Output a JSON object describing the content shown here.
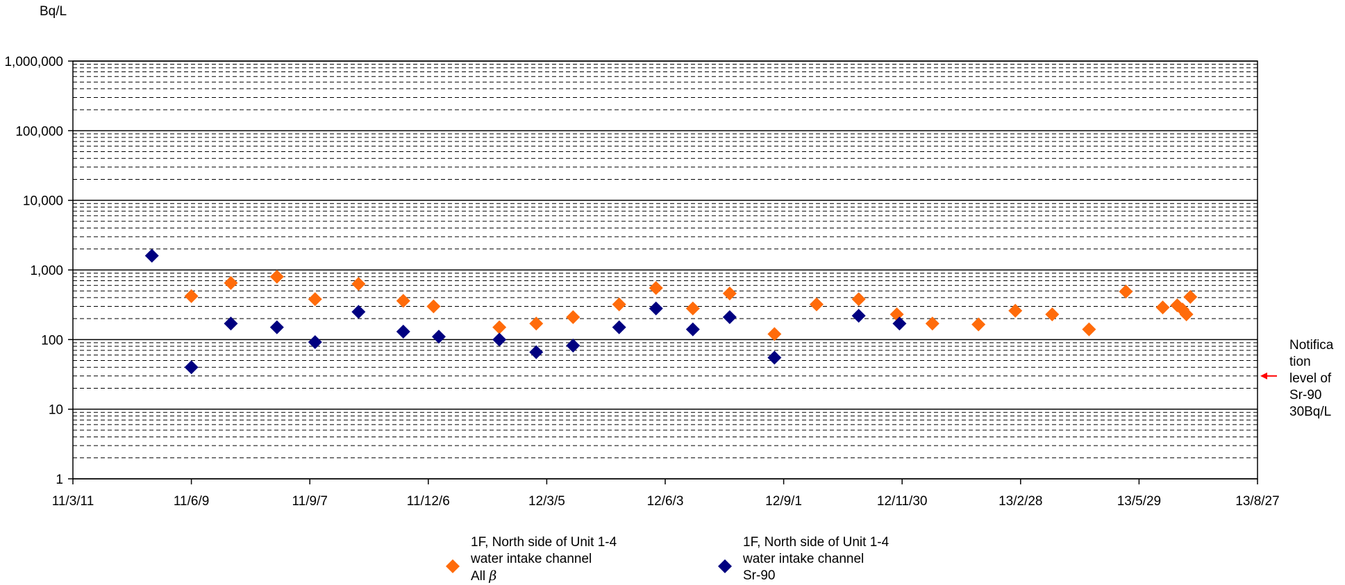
{
  "chart_data": {
    "type": "scatter",
    "title": "",
    "xlabel": "",
    "ylabel": "Bq/L",
    "yscale": "log",
    "ylim": [
      1,
      1000000
    ],
    "xlim": [
      "2011-03-11",
      "2013-08-27"
    ],
    "grid": true,
    "legend_position": "bottom",
    "y_ticks": [
      {
        "value": 1,
        "label": "1"
      },
      {
        "value": 10,
        "label": "10"
      },
      {
        "value": 100,
        "label": "100"
      },
      {
        "value": 1000,
        "label": "1,000"
      },
      {
        "value": 10000,
        "label": "10,000"
      },
      {
        "value": 100000,
        "label": "100,000"
      },
      {
        "value": 1000000,
        "label": "1,000,000"
      }
    ],
    "x_ticks": [
      {
        "date": "2011-03-11",
        "label": "11/3/11"
      },
      {
        "date": "2011-06-09",
        "label": "11/6/9"
      },
      {
        "date": "2011-09-07",
        "label": "11/9/7"
      },
      {
        "date": "2011-12-06",
        "label": "11/12/6"
      },
      {
        "date": "2012-03-05",
        "label": "12/3/5"
      },
      {
        "date": "2012-06-03",
        "label": "12/6/3"
      },
      {
        "date": "2012-09-01",
        "label": "12/9/1"
      },
      {
        "date": "2012-11-30",
        "label": "12/11/30"
      },
      {
        "date": "2013-02-28",
        "label": "13/2/28"
      },
      {
        "date": "2013-05-29",
        "label": "13/5/29"
      },
      {
        "date": "2013-08-27",
        "label": "13/8/27"
      }
    ],
    "series": [
      {
        "name_lines": [
          "1F, North side of Unit 1-4",
          "water intake channel",
          "All "
        ],
        "name_symbol": "β",
        "color": "#ff6b0a",
        "marker": "diamond",
        "points": [
          {
            "x": "2011-06-09",
            "y": 420
          },
          {
            "x": "2011-07-09",
            "y": 650
          },
          {
            "x": "2011-08-13",
            "y": 800
          },
          {
            "x": "2011-09-11",
            "y": 380
          },
          {
            "x": "2011-10-14",
            "y": 630
          },
          {
            "x": "2011-11-17",
            "y": 360
          },
          {
            "x": "2011-12-10",
            "y": 300
          },
          {
            "x": "2012-01-29",
            "y": 150
          },
          {
            "x": "2012-02-26",
            "y": 170
          },
          {
            "x": "2012-03-25",
            "y": 210
          },
          {
            "x": "2012-04-29",
            "y": 320
          },
          {
            "x": "2012-05-27",
            "y": 550
          },
          {
            "x": "2012-06-24",
            "y": 280
          },
          {
            "x": "2012-07-22",
            "y": 460
          },
          {
            "x": "2012-08-25",
            "y": 120
          },
          {
            "x": "2012-09-26",
            "y": 320
          },
          {
            "x": "2012-10-28",
            "y": 380
          },
          {
            "x": "2012-11-26",
            "y": 230
          },
          {
            "x": "2012-12-23",
            "y": 170
          },
          {
            "x": "2013-01-27",
            "y": 165
          },
          {
            "x": "2013-02-24",
            "y": 260
          },
          {
            "x": "2013-03-24",
            "y": 230
          },
          {
            "x": "2013-04-21",
            "y": 140
          },
          {
            "x": "2013-05-19",
            "y": 490
          },
          {
            "x": "2013-06-16",
            "y": 290
          },
          {
            "x": "2013-06-27",
            "y": 310
          },
          {
            "x": "2013-07-01",
            "y": 270
          },
          {
            "x": "2013-07-04",
            "y": 230
          },
          {
            "x": "2013-07-07",
            "y": 410
          }
        ]
      },
      {
        "name_lines": [
          "1F, North side of Unit 1-4",
          "water intake channel",
          "Sr-90"
        ],
        "color": "#000080",
        "marker": "diamond",
        "points": [
          {
            "x": "2011-05-10",
            "y": 1600
          },
          {
            "x": "2011-06-09",
            "y": 40
          },
          {
            "x": "2011-07-09",
            "y": 170
          },
          {
            "x": "2011-08-13",
            "y": 150
          },
          {
            "x": "2011-09-11",
            "y": 92
          },
          {
            "x": "2011-10-14",
            "y": 250
          },
          {
            "x": "2011-11-17",
            "y": 130
          },
          {
            "x": "2011-12-14",
            "y": 110
          },
          {
            "x": "2012-01-29",
            "y": 100
          },
          {
            "x": "2012-02-26",
            "y": 66
          },
          {
            "x": "2012-03-25",
            "y": 82
          },
          {
            "x": "2012-04-29",
            "y": 150
          },
          {
            "x": "2012-05-27",
            "y": 280
          },
          {
            "x": "2012-06-24",
            "y": 140
          },
          {
            "x": "2012-07-22",
            "y": 210
          },
          {
            "x": "2012-08-25",
            "y": 55
          },
          {
            "x": "2012-10-28",
            "y": 220
          },
          {
            "x": "2012-11-28",
            "y": 170
          }
        ]
      }
    ],
    "annotations": [
      {
        "text_lines": [
          "Notifica",
          "tion",
          "level of",
          "Sr-90",
          "30Bq/L"
        ],
        "y": 30,
        "color": "#ff0000"
      }
    ]
  }
}
